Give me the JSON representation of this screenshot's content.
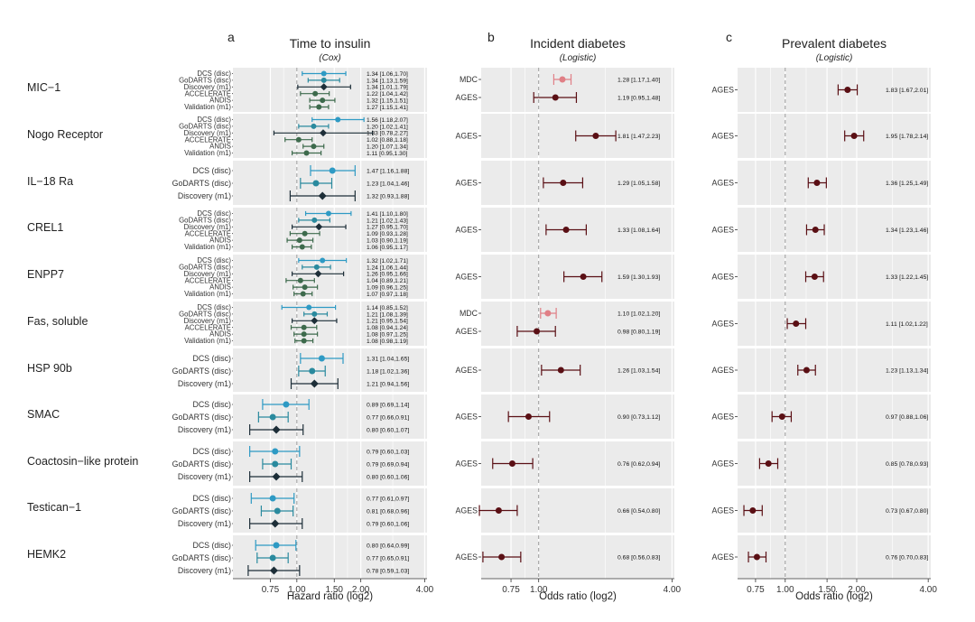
{
  "chart_data": {
    "type": "forest",
    "proteins": [
      "MIC−1",
      "Nogo Receptor",
      "IL−18 Ra",
      "CREL1",
      "ENPP7",
      "Fas, soluble",
      "HSP 90b",
      "SMAC",
      "Coactosin−like protein",
      "Testican−1",
      "HEMK2"
    ],
    "colors": {
      "DCS (disc)": "#2e9ac4",
      "GoDARTS (disc)": "#2a8a9e",
      "Discovery (m1)": "#1d2e38",
      "ACCELERATE": "#3d6a4c",
      "ANDIS": "#3d6a4c",
      "Validation (m1)": "#3d6a4c",
      "MDC": "#e07f86",
      "AGES": "#5a0f14",
      "panel_bg": "#ebebeb",
      "grid": "#ffffff",
      "ref_line": "#9a9a9a"
    },
    "panels": [
      {
        "letter": "a",
        "title": "Time to insulin",
        "subtitle": "(Cox)",
        "xlabel": "Hazard ratio (log2)",
        "xticks": [
          "0.75",
          "1.00",
          "1.50",
          "2.00",
          "4.00"
        ],
        "xtick_values": [
          0.75,
          1.0,
          1.5,
          2.0,
          4.0
        ],
        "xlim": [
          0.5,
          4.1
        ],
        "rows": [
          [
            {
              "label": "DCS (disc)",
              "hr": 1.34,
              "lo": 1.06,
              "hi": 1.7,
              "text": "1.34 [1.06,1.70]"
            },
            {
              "label": "GoDARTS (disc)",
              "hr": 1.34,
              "lo": 1.13,
              "hi": 1.59,
              "text": "1.34 [1.13,1.59]"
            },
            {
              "label": "Discovery (m1)",
              "hr": 1.34,
              "lo": 1.01,
              "hi": 1.79,
              "text": "1.34 [1.01,1.79]"
            },
            {
              "label": "ACCELERATE",
              "hr": 1.22,
              "lo": 1.04,
              "hi": 1.42,
              "text": "1.22 [1.04,1.42]"
            },
            {
              "label": "ANDIS",
              "hr": 1.32,
              "lo": 1.15,
              "hi": 1.51,
              "text": "1.32 [1.15,1.51]"
            },
            {
              "label": "Validation (m1)",
              "hr": 1.27,
              "lo": 1.15,
              "hi": 1.41,
              "text": "1.27 [1.15,1.41]"
            }
          ],
          [
            {
              "label": "DCS (disc)",
              "hr": 1.56,
              "lo": 1.18,
              "hi": 2.07,
              "text": "1.56 [1.18,2.07]"
            },
            {
              "label": "GoDARTS (disc)",
              "hr": 1.2,
              "lo": 1.02,
              "hi": 1.41,
              "text": "1.20 [1.02,1.41]"
            },
            {
              "label": "Discovery (m1)",
              "hr": 1.33,
              "lo": 0.78,
              "hi": 2.27,
              "text": "1.33 [0.78,2.27]"
            },
            {
              "label": "ACCELERATE",
              "hr": 1.02,
              "lo": 0.88,
              "hi": 1.18,
              "text": "1.02 [0.88,1.18]"
            },
            {
              "label": "ANDIS",
              "hr": 1.2,
              "lo": 1.07,
              "hi": 1.34,
              "text": "1.20 [1.07,1.34]"
            },
            {
              "label": "Validation (m1)",
              "hr": 1.11,
              "lo": 0.95,
              "hi": 1.3,
              "text": "1.11 [0.95,1.30]"
            }
          ],
          [
            {
              "label": "DCS (disc)",
              "hr": 1.47,
              "lo": 1.16,
              "hi": 1.88,
              "text": "1.47 [1.16,1.88]"
            },
            {
              "label": "GoDARTS (disc)",
              "hr": 1.23,
              "lo": 1.04,
              "hi": 1.46,
              "text": "1.23 [1.04,1.46]"
            },
            {
              "label": "Discovery (m1)",
              "hr": 1.32,
              "lo": 0.93,
              "hi": 1.88,
              "text": "1.32 [0.93,1.88]"
            }
          ],
          [
            {
              "label": "DCS (disc)",
              "hr": 1.41,
              "lo": 1.1,
              "hi": 1.8,
              "text": "1.41 [1.10,1.80]"
            },
            {
              "label": "GoDARTS (disc)",
              "hr": 1.21,
              "lo": 1.02,
              "hi": 1.43,
              "text": "1.21 [1.02,1.43]"
            },
            {
              "label": "Discovery (m1)",
              "hr": 1.27,
              "lo": 0.95,
              "hi": 1.7,
              "text": "1.27 [0.95,1.70]"
            },
            {
              "label": "ACCELERATE",
              "hr": 1.09,
              "lo": 0.93,
              "hi": 1.28,
              "text": "1.09 [0.93,1.28]"
            },
            {
              "label": "ANDIS",
              "hr": 1.03,
              "lo": 0.9,
              "hi": 1.19,
              "text": "1.03 [0.90,1.19]"
            },
            {
              "label": "Validation (m1)",
              "hr": 1.06,
              "lo": 0.95,
              "hi": 1.17,
              "text": "1.06 [0.95,1.17]"
            }
          ],
          [
            {
              "label": "DCS (disc)",
              "hr": 1.32,
              "lo": 1.02,
              "hi": 1.71,
              "text": "1.32 [1.02,1.71]"
            },
            {
              "label": "GoDARTS (disc)",
              "hr": 1.24,
              "lo": 1.06,
              "hi": 1.44,
              "text": "1.24 [1.06,1.44]"
            },
            {
              "label": "Discovery (m1)",
              "hr": 1.26,
              "lo": 0.95,
              "hi": 1.66,
              "text": "1.26 [0.95,1.66]"
            },
            {
              "label": "ACCELERATE",
              "hr": 1.04,
              "lo": 0.89,
              "hi": 1.21,
              "text": "1.04 [0.89,1.21]"
            },
            {
              "label": "ANDIS",
              "hr": 1.09,
              "lo": 0.96,
              "hi": 1.25,
              "text": "1.09 [0.96,1.25]"
            },
            {
              "label": "Validation (m1)",
              "hr": 1.07,
              "lo": 0.97,
              "hi": 1.18,
              "text": "1.07 [0.97,1.18]"
            }
          ],
          [
            {
              "label": "DCS (disc)",
              "hr": 1.14,
              "lo": 0.85,
              "hi": 1.52,
              "text": "1.14 [0.85,1.52]"
            },
            {
              "label": "GoDARTS (disc)",
              "hr": 1.21,
              "lo": 1.08,
              "hi": 1.39,
              "text": "1.21 [1.08,1.39]"
            },
            {
              "label": "Discovery (m1)",
              "hr": 1.21,
              "lo": 0.95,
              "hi": 1.54,
              "text": "1.21 [0.95,1.54]"
            },
            {
              "label": "ACCELERATE",
              "hr": 1.08,
              "lo": 0.94,
              "hi": 1.24,
              "text": "1.08 [0.94,1.24]"
            },
            {
              "label": "ANDIS",
              "hr": 1.08,
              "lo": 0.97,
              "hi": 1.25,
              "text": "1.08 [0.97,1.25]"
            },
            {
              "label": "Validation (m1)",
              "hr": 1.08,
              "lo": 0.98,
              "hi": 1.19,
              "text": "1.08 [0.98,1.19]"
            }
          ],
          [
            {
              "label": "DCS (disc)",
              "hr": 1.31,
              "lo": 1.04,
              "hi": 1.65,
              "text": "1.31 [1.04,1.65]"
            },
            {
              "label": "GoDARTS (disc)",
              "hr": 1.18,
              "lo": 1.02,
              "hi": 1.36,
              "text": "1.18 [1.02,1.36]"
            },
            {
              "label": "Discovery (m1)",
              "hr": 1.21,
              "lo": 0.94,
              "hi": 1.56,
              "text": "1.21 [0.94,1.56]"
            }
          ],
          [
            {
              "label": "DCS (disc)",
              "hr": 0.89,
              "lo": 0.69,
              "hi": 1.14,
              "text": "0.89 [0.69,1.14]"
            },
            {
              "label": "GoDARTS (disc)",
              "hr": 0.77,
              "lo": 0.66,
              "hi": 0.91,
              "text": "0.77 [0.66,0.91]"
            },
            {
              "label": "Discovery (m1)",
              "hr": 0.8,
              "lo": 0.6,
              "hi": 1.07,
              "text": "0.80 [0.60,1.07]"
            }
          ],
          [
            {
              "label": "DCS (disc)",
              "hr": 0.79,
              "lo": 0.6,
              "hi": 1.03,
              "text": "0.79 [0.60,1.03]"
            },
            {
              "label": "GoDARTS (disc)",
              "hr": 0.79,
              "lo": 0.69,
              "hi": 0.94,
              "text": "0.79 [0.69,0.94]"
            },
            {
              "label": "Discovery (m1)",
              "hr": 0.8,
              "lo": 0.6,
              "hi": 1.06,
              "text": "0.80 [0.60,1.06]"
            }
          ],
          [
            {
              "label": "DCS (disc)",
              "hr": 0.77,
              "lo": 0.61,
              "hi": 0.97,
              "text": "0.77 [0.61,0.97]"
            },
            {
              "label": "GoDARTS (disc)",
              "hr": 0.81,
              "lo": 0.68,
              "hi": 0.96,
              "text": "0.81 [0.68,0.96]"
            },
            {
              "label": "Discovery (m1)",
              "hr": 0.79,
              "lo": 0.6,
              "hi": 1.06,
              "text": "0.79 [0.60,1.06]"
            }
          ],
          [
            {
              "label": "DCS (disc)",
              "hr": 0.8,
              "lo": 0.64,
              "hi": 0.99,
              "text": "0.80 [0.64,0.99]"
            },
            {
              "label": "GoDARTS (disc)",
              "hr": 0.77,
              "lo": 0.65,
              "hi": 0.91,
              "text": "0.77 [0.65,0.91]"
            },
            {
              "label": "Discovery (m1)",
              "hr": 0.78,
              "lo": 0.59,
              "hi": 1.03,
              "text": "0.78 [0.59,1.03]"
            }
          ]
        ]
      },
      {
        "letter": "b",
        "title": "Incident diabetes",
        "subtitle": "(Logistic)",
        "xlabel": "Odds ratio (log2)",
        "xticks": [
          "0.75",
          "1.00",
          "4.00"
        ],
        "xtick_values": [
          0.75,
          1.0,
          4.0
        ],
        "xlim": [
          0.55,
          4.1
        ],
        "rows": [
          [
            {
              "label": "MDC",
              "hr": 1.28,
              "lo": 1.17,
              "hi": 1.4,
              "text": "1.28 [1.17,1.40]"
            },
            {
              "label": "AGES",
              "hr": 1.19,
              "lo": 0.95,
              "hi": 1.48,
              "text": "1.19 [0.95,1.48]"
            }
          ],
          [
            {
              "label": "AGES",
              "hr": 1.81,
              "lo": 1.47,
              "hi": 2.23,
              "text": "1.81 [1.47,2.23]"
            }
          ],
          [
            {
              "label": "AGES",
              "hr": 1.29,
              "lo": 1.05,
              "hi": 1.58,
              "text": "1.29 [1.05,1.58]"
            }
          ],
          [
            {
              "label": "AGES",
              "hr": 1.33,
              "lo": 1.08,
              "hi": 1.64,
              "text": "1.33 [1.08,1.64]"
            }
          ],
          [
            {
              "label": "AGES",
              "hr": 1.59,
              "lo": 1.3,
              "hi": 1.93,
              "text": "1.59 [1.30,1.93]"
            }
          ],
          [
            {
              "label": "MDC",
              "hr": 1.1,
              "lo": 1.02,
              "hi": 1.2,
              "text": "1.10 [1.02,1.20]"
            },
            {
              "label": "AGES",
              "hr": 0.98,
              "lo": 0.8,
              "hi": 1.19,
              "text": "0.98 [0.80,1.19]"
            }
          ],
          [
            {
              "label": "AGES",
              "hr": 1.26,
              "lo": 1.03,
              "hi": 1.54,
              "text": "1.26 [1.03,1.54]"
            }
          ],
          [
            {
              "label": "AGES",
              "hr": 0.9,
              "lo": 0.73,
              "hi": 1.12,
              "text": "0.90 [0.73,1.12]"
            }
          ],
          [
            {
              "label": "AGES",
              "hr": 0.76,
              "lo": 0.62,
              "hi": 0.94,
              "text": "0.76 [0.62,0.94]"
            }
          ],
          [
            {
              "label": "AGES",
              "hr": 0.66,
              "lo": 0.54,
              "hi": 0.8,
              "text": "0.66 [0.54,0.80]"
            }
          ],
          [
            {
              "label": "AGES",
              "hr": 0.68,
              "lo": 0.56,
              "hi": 0.83,
              "text": "0.68 [0.56,0.83]"
            }
          ]
        ]
      },
      {
        "letter": "c",
        "title": "Prevalent diabetes",
        "subtitle": "(Logistic)",
        "xlabel": "Odds ratio (log2)",
        "xticks": [
          "0.75",
          "1.00",
          "1.50",
          "2.00",
          "4.00"
        ],
        "xtick_values": [
          0.75,
          1.0,
          1.5,
          2.0,
          4.0
        ],
        "xlim": [
          0.63,
          4.1
        ],
        "rows": [
          [
            {
              "label": "AGES",
              "hr": 1.83,
              "lo": 1.67,
              "hi": 2.01,
              "text": "1.83 [1.67,2.01]"
            }
          ],
          [
            {
              "label": "AGES",
              "hr": 1.95,
              "lo": 1.78,
              "hi": 2.14,
              "text": "1.95 [1.78,2.14]"
            }
          ],
          [
            {
              "label": "AGES",
              "hr": 1.36,
              "lo": 1.25,
              "hi": 1.49,
              "text": "1.36 [1.25,1.49]"
            }
          ],
          [
            {
              "label": "AGES",
              "hr": 1.34,
              "lo": 1.23,
              "hi": 1.46,
              "text": "1.34 [1.23,1.46]"
            }
          ],
          [
            {
              "label": "AGES",
              "hr": 1.33,
              "lo": 1.22,
              "hi": 1.45,
              "text": "1.33 [1.22,1.45]"
            }
          ],
          [
            {
              "label": "AGES",
              "hr": 1.11,
              "lo": 1.02,
              "hi": 1.22,
              "text": "1.11 [1.02,1.22]"
            }
          ],
          [
            {
              "label": "AGES",
              "hr": 1.23,
              "lo": 1.13,
              "hi": 1.34,
              "text": "1.23 [1.13,1.34]"
            }
          ],
          [
            {
              "label": "AGES",
              "hr": 0.97,
              "lo": 0.88,
              "hi": 1.06,
              "text": "0.97 [0.88,1.06]"
            }
          ],
          [
            {
              "label": "AGES",
              "hr": 0.85,
              "lo": 0.78,
              "hi": 0.93,
              "text": "0.85 [0.78,0.93]"
            }
          ],
          [
            {
              "label": "AGES",
              "hr": 0.73,
              "lo": 0.67,
              "hi": 0.8,
              "text": "0.73 [0.67,0.80]"
            }
          ],
          [
            {
              "label": "AGES",
              "hr": 0.76,
              "lo": 0.7,
              "hi": 0.83,
              "text": "0.76 [0.70,0.83]"
            }
          ]
        ]
      }
    ]
  }
}
